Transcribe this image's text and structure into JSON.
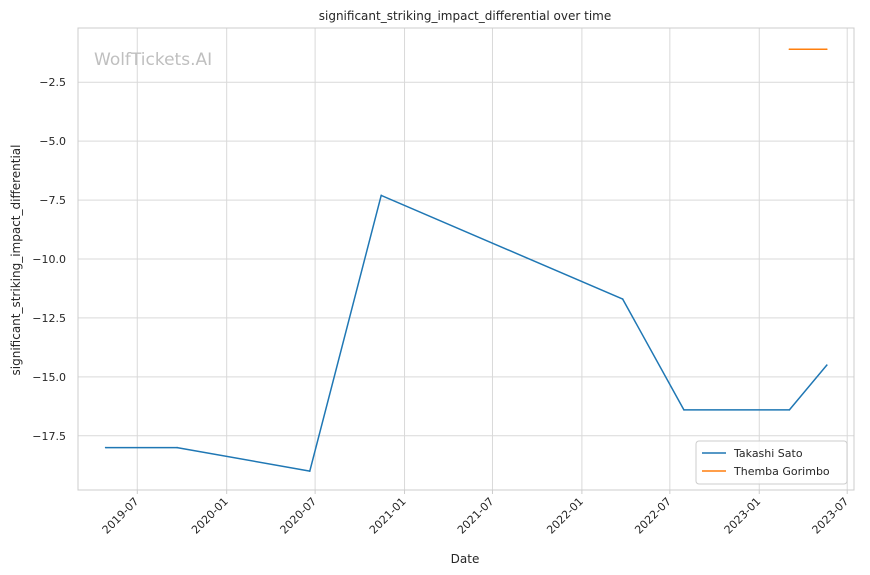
{
  "chart_data": {
    "type": "line",
    "title": "significant_striking_impact_differential over time",
    "xlabel": "Date",
    "ylabel": "significant_striking_impact_differential",
    "watermark": "WolfTickets.AI",
    "xlim": [
      "2019-03-01",
      "2023-07-15"
    ],
    "ylim": [
      -19.8,
      -0.2
    ],
    "x_ticks": [
      "2019-07-01",
      "2020-01-01",
      "2020-07-01",
      "2021-01-01",
      "2021-07-01",
      "2022-01-01",
      "2022-07-01",
      "2023-01-01",
      "2023-07-01"
    ],
    "x_tick_labels": [
      "2019-07",
      "2020-01",
      "2020-07",
      "2021-01",
      "2021-07",
      "2022-01",
      "2022-07",
      "2023-01",
      "2023-07"
    ],
    "y_ticks": [
      -17.5,
      -15.0,
      -12.5,
      -10.0,
      -7.5,
      -5.0,
      -2.5
    ],
    "y_tick_labels": [
      "−17.5",
      "−15.0",
      "−12.5",
      "−10.0",
      "−7.5",
      "−5.0",
      "−2.5"
    ],
    "grid": true,
    "legend_position": "bottom-right",
    "series": [
      {
        "name": "Takashi Sato",
        "color": "#1f77b4",
        "points": [
          {
            "x": "2019-04-27",
            "y": -18.0
          },
          {
            "x": "2019-09-21",
            "y": -18.0
          },
          {
            "x": "2020-06-20",
            "y": -19.0
          },
          {
            "x": "2020-11-14",
            "y": -7.3
          },
          {
            "x": "2022-03-26",
            "y": -11.7
          },
          {
            "x": "2022-07-30",
            "y": -16.4
          },
          {
            "x": "2023-03-04",
            "y": -16.4
          },
          {
            "x": "2023-05-20",
            "y": -14.5
          }
        ]
      },
      {
        "name": "Themba Gorimbo",
        "color": "#ff7f0e",
        "points": [
          {
            "x": "2023-03-04",
            "y": -1.1
          },
          {
            "x": "2023-05-20",
            "y": -1.1
          }
        ]
      }
    ]
  }
}
